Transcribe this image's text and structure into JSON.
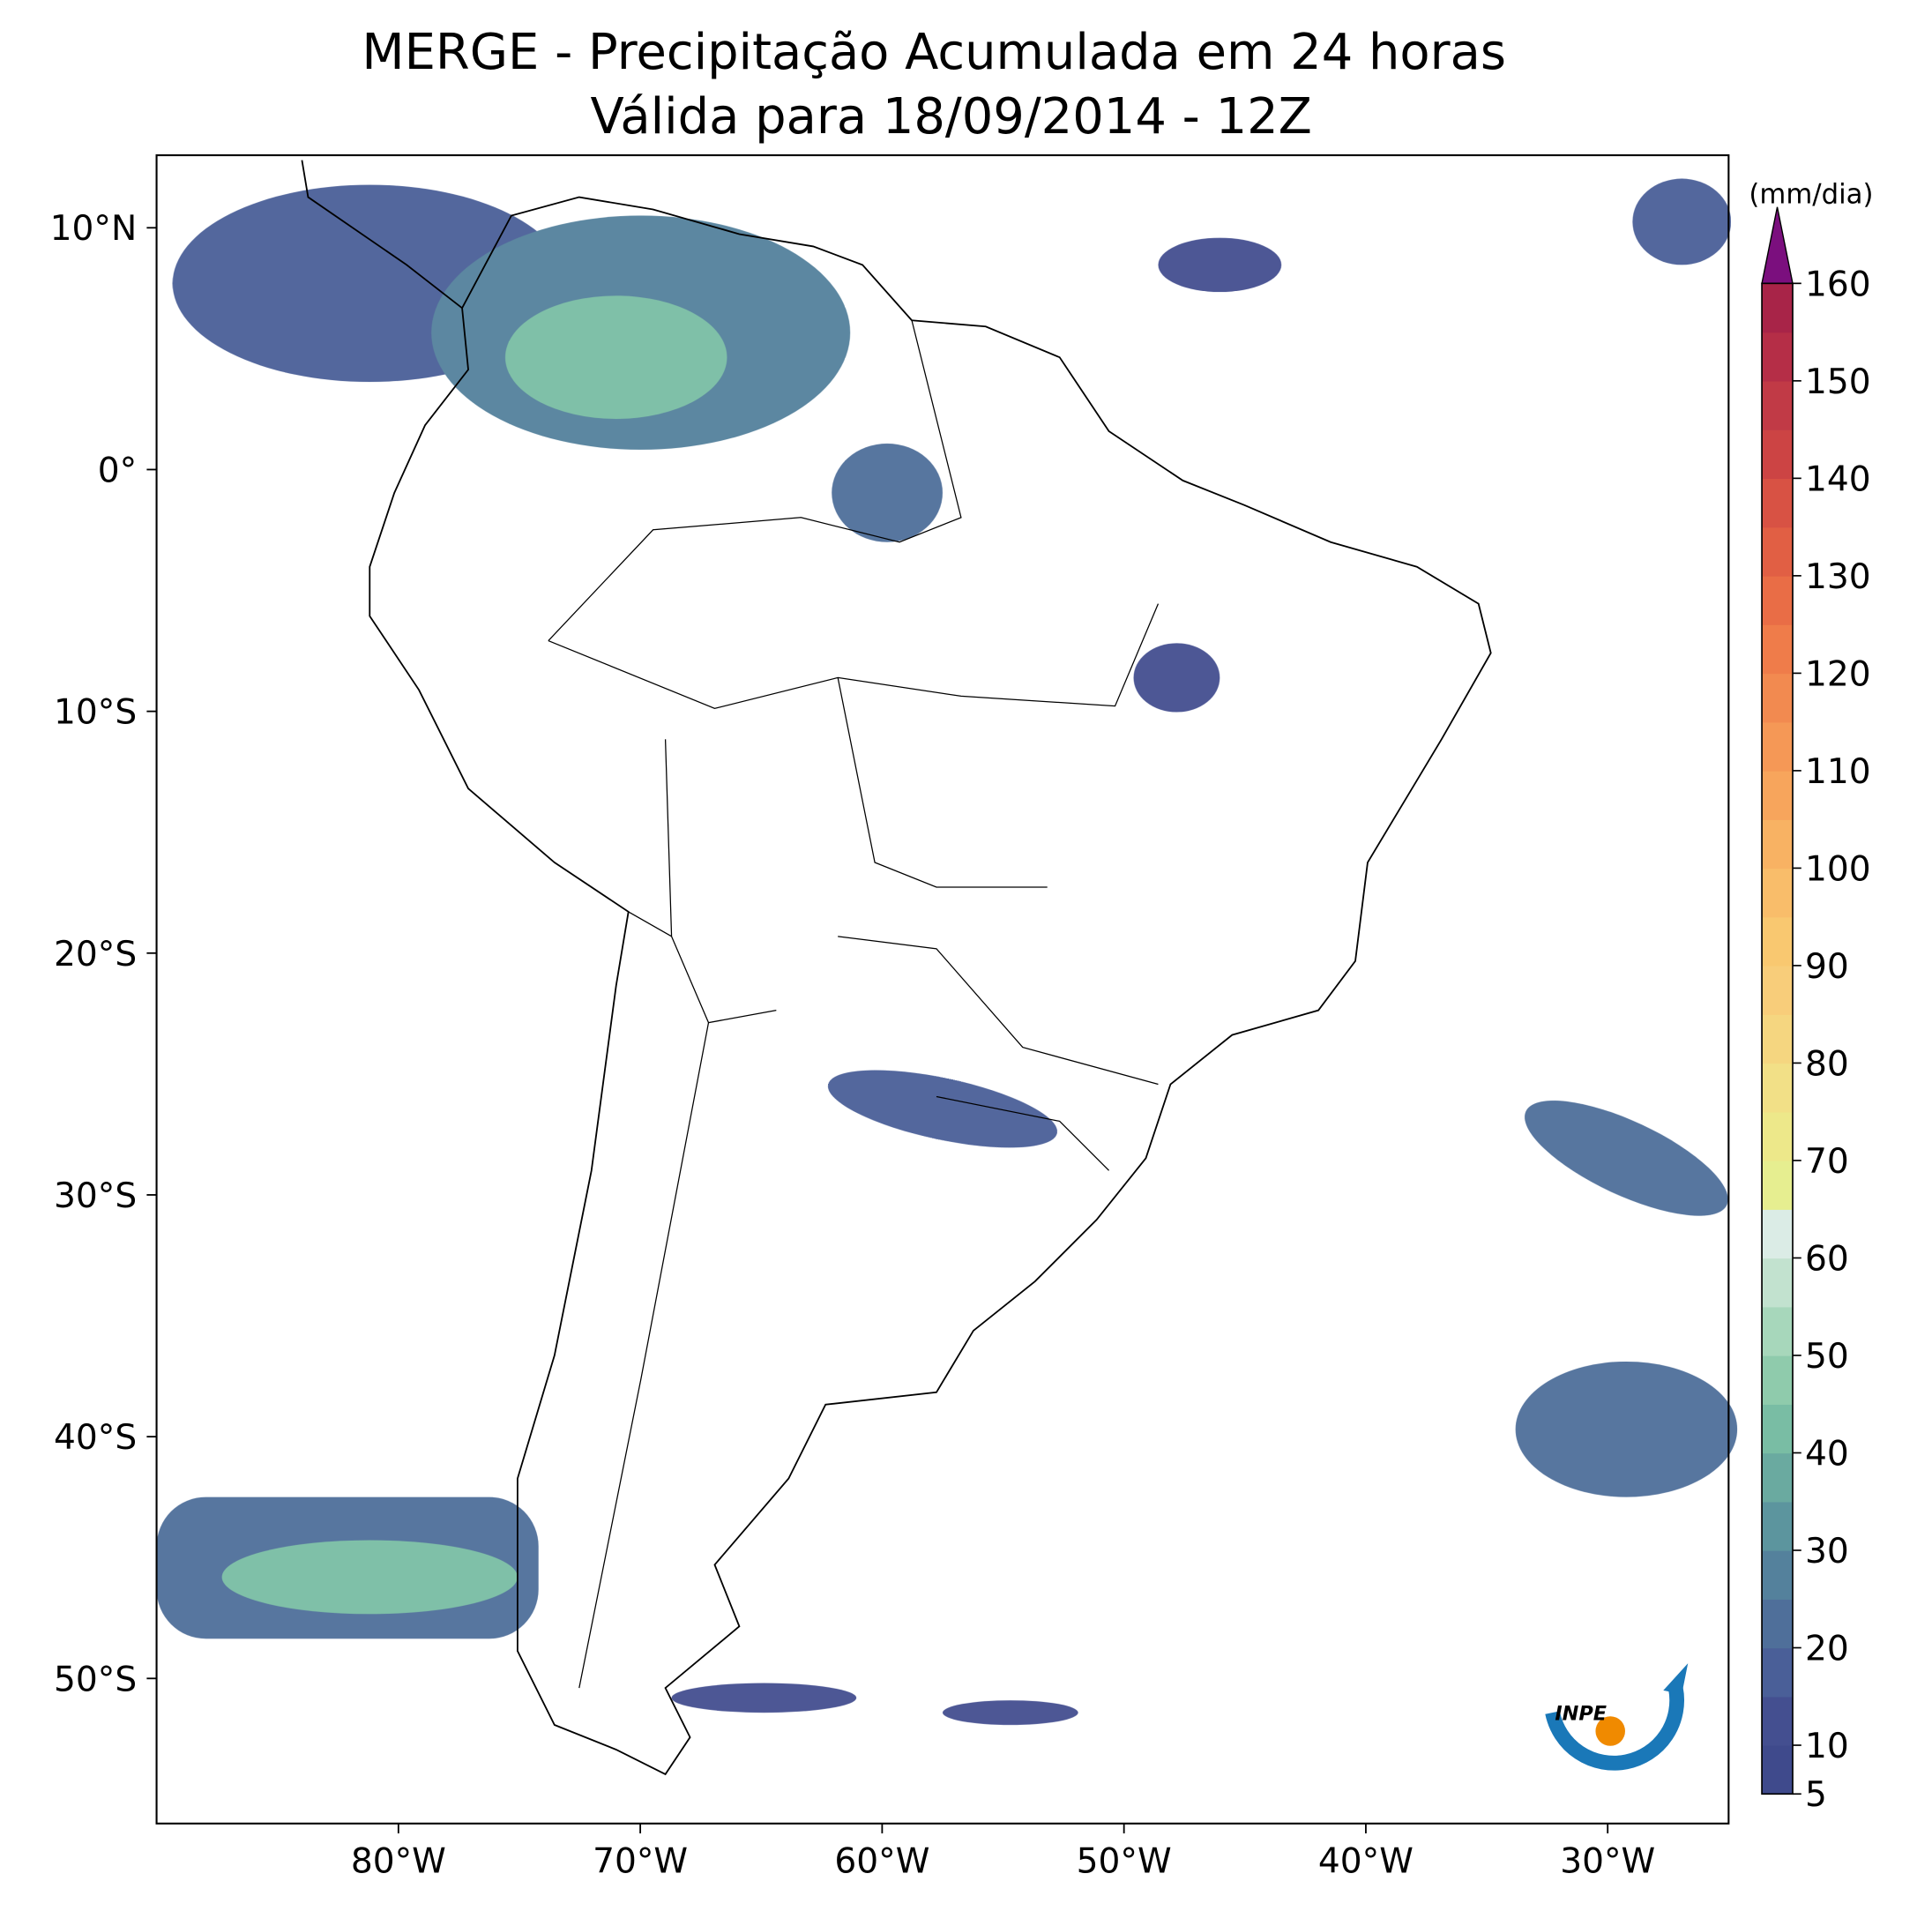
{
  "chart_data": {
    "type": "map",
    "title": "MERGE - Precipitação Acumulada em 24 horas",
    "subtitle": "Válida para 18/09/2014 - 12Z",
    "xlim": [
      -90,
      -25
    ],
    "ylim": [
      -56,
      13
    ],
    "xticks": [
      {
        "value": -80,
        "label": "80°W"
      },
      {
        "value": -70,
        "label": "70°W"
      },
      {
        "value": -60,
        "label": "60°W"
      },
      {
        "value": -50,
        "label": "50°W"
      },
      {
        "value": -40,
        "label": "40°W"
      },
      {
        "value": -30,
        "label": "30°W"
      }
    ],
    "yticks": [
      {
        "value": 10,
        "label": "10°N"
      },
      {
        "value": 0,
        "label": "0°"
      },
      {
        "value": -10,
        "label": "10°S"
      },
      {
        "value": -20,
        "label": "20°S"
      },
      {
        "value": -30,
        "label": "30°S"
      },
      {
        "value": -40,
        "label": "40°S"
      },
      {
        "value": -50,
        "label": "50°S"
      }
    ],
    "colorbar": {
      "label": "(mm/dia)",
      "lim": [
        5,
        160
      ],
      "ticks": [
        5,
        10,
        20,
        30,
        40,
        50,
        60,
        70,
        80,
        90,
        100,
        110,
        120,
        130,
        140,
        150,
        160
      ],
      "levels": [
        5,
        10,
        15,
        20,
        25,
        30,
        35,
        40,
        45,
        50,
        55,
        60,
        65,
        70,
        75,
        80,
        85,
        90,
        95,
        100,
        105,
        110,
        115,
        120,
        125,
        130,
        135,
        140,
        145,
        150,
        155,
        160
      ],
      "colors": [
        "#3f4a8c",
        "#444f90",
        "#4a5f98",
        "#4f6f9a",
        "#54819c",
        "#5c959e",
        "#6aaaa0",
        "#79bda4",
        "#8fcbac",
        "#a7d7bb",
        "#c2e2cf",
        "#dbece6",
        "#e6ee90",
        "#ede88a",
        "#f2e087",
        "#f5d680",
        "#f8cd7a",
        "#f9c870",
        "#f9bd6a",
        "#f8b263",
        "#f7a55c",
        "#f59856",
        "#f28a50",
        "#ef7c4a",
        "#e96d46",
        "#e15f44",
        "#d85244",
        "#cc4444",
        "#c13a46",
        "#b52e47",
        "#a82448"
      ],
      "extend_color": "#7b0f7e"
    }
  },
  "logo": {
    "text": "INPE"
  }
}
